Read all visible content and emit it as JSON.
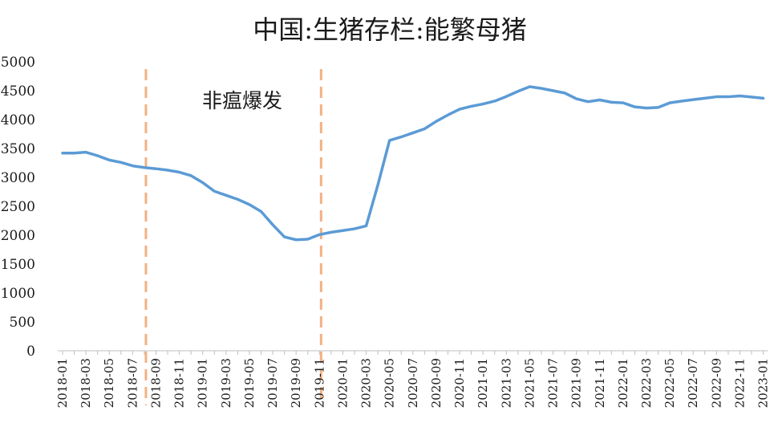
{
  "chart_data": {
    "type": "line",
    "title": "中国:生猪存栏:能繁母猪",
    "xlabel": "",
    "ylabel": "",
    "ylim": [
      0,
      5000
    ],
    "yticks": [
      0,
      500,
      1000,
      1500,
      2000,
      2500,
      3000,
      3500,
      4000,
      4500,
      5000
    ],
    "x_tick_labels": [
      "2018-01",
      "2018-03",
      "2018-05",
      "2018-07",
      "2018-09",
      "2018-11",
      "2019-01",
      "2019-03",
      "2019-05",
      "2019-07",
      "2019-09",
      "2019-11",
      "2020-01",
      "2020-03",
      "2020-05",
      "2020-07",
      "2020-09",
      "2020-11",
      "2021-01",
      "2021-03",
      "2021-05",
      "2021-07",
      "2021-09",
      "2021-11",
      "2022-01",
      "2022-03",
      "2022-05",
      "2022-07",
      "2022-09",
      "2022-11",
      "2023-01"
    ],
    "grid": false,
    "legend": "none",
    "line_color": "#5b9bd5",
    "marker_color": "#f4b183",
    "x": [
      "2018-01",
      "2018-02",
      "2018-03",
      "2018-04",
      "2018-05",
      "2018-06",
      "2018-07",
      "2018-08",
      "2018-09",
      "2018-10",
      "2018-11",
      "2018-12",
      "2019-01",
      "2019-02",
      "2019-03",
      "2019-04",
      "2019-05",
      "2019-06",
      "2019-07",
      "2019-08",
      "2019-09",
      "2019-10",
      "2019-11",
      "2019-12",
      "2020-01",
      "2020-02",
      "2020-03",
      "2020-04",
      "2020-05",
      "2020-06",
      "2020-07",
      "2020-08",
      "2020-09",
      "2020-10",
      "2020-11",
      "2020-12",
      "2021-01",
      "2021-02",
      "2021-03",
      "2021-04",
      "2021-05",
      "2021-06",
      "2021-07",
      "2021-08",
      "2021-09",
      "2021-10",
      "2021-11",
      "2021-12",
      "2022-01",
      "2022-02",
      "2022-03",
      "2022-04",
      "2022-05",
      "2022-06",
      "2022-07",
      "2022-08",
      "2022-09",
      "2022-10",
      "2022-11",
      "2022-12",
      "2023-01"
    ],
    "series": [
      {
        "values": [
          3420,
          3420,
          3435,
          3375,
          3300,
          3260,
          3200,
          3170,
          3150,
          3125,
          3090,
          3030,
          2910,
          2760,
          2690,
          2620,
          2530,
          2410,
          2180,
          1970,
          1920,
          1930,
          2010,
          2050,
          2080,
          2110,
          2160,
          2870,
          3640,
          3700,
          3770,
          3840,
          3970,
          4080,
          4180,
          4230,
          4270,
          4320,
          4400,
          4490,
          4570,
          4540,
          4500,
          4460,
          4360,
          4310,
          4340,
          4300,
          4290,
          4220,
          4200,
          4210,
          4290,
          4320,
          4345,
          4370,
          4395,
          4395,
          4410,
          4390,
          4370
        ]
      }
    ],
    "markers": [
      {
        "x": "2018-08",
        "label": "非瘟爆发"
      },
      {
        "x": "2019-11",
        "label": ""
      }
    ]
  }
}
